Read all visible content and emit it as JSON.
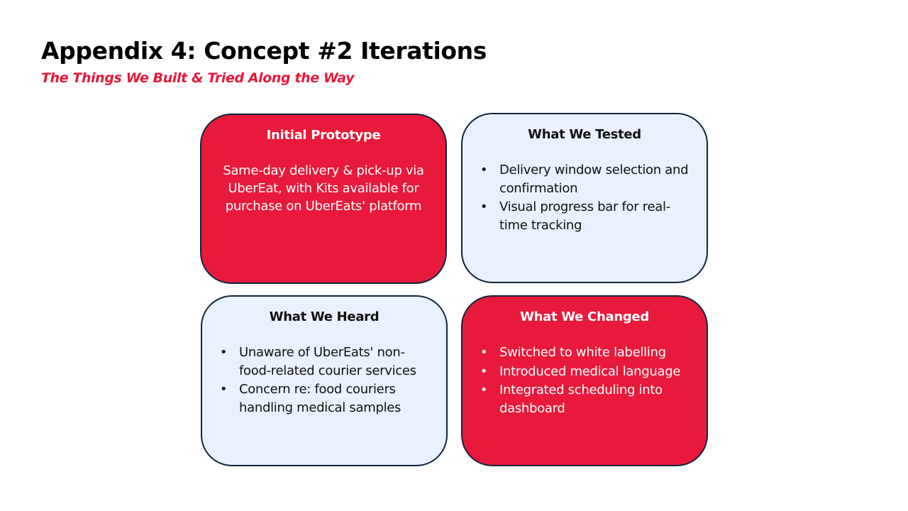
{
  "slide": {
    "title": "Appendix 4: Concept #2 Iterations",
    "subtitle": "The Things We Built & Tried Along the Way"
  },
  "colors": {
    "accent_red": "#e8193a",
    "card_light": "#e8f1fd",
    "card_border": "#10263a"
  },
  "cards": {
    "initial_prototype": {
      "title": "Initial Prototype",
      "text": "Same-day delivery & pick-up via UberEat, with Kits available for purchase on UberEats' platform"
    },
    "what_we_tested": {
      "title": "What We Tested",
      "items": [
        "Delivery window selection and confirmation",
        "Visual progress bar for real-time tracking"
      ]
    },
    "what_we_heard": {
      "title": "What We Heard",
      "items": [
        "Unaware of UberEats' non-food-related courier services",
        "Concern re: food couriers handling medical samples"
      ]
    },
    "what_we_changed": {
      "title": "What We Changed",
      "items": [
        "Switched to white labelling",
        "Introduced medical language",
        "Integrated scheduling into dashboard"
      ]
    },
    "bullet_symbol": "•"
  }
}
